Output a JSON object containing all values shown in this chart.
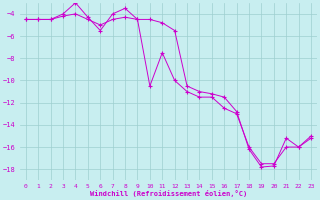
{
  "x_values": [
    0,
    1,
    2,
    3,
    4,
    5,
    6,
    7,
    8,
    9,
    10,
    11,
    12,
    13,
    14,
    15,
    16,
    17,
    18,
    19,
    20,
    21,
    22,
    23
  ],
  "line1": [
    -4.5,
    -4.5,
    -4.5,
    -4.2,
    -4.0,
    -4.5,
    -5.0,
    -4.5,
    -4.3,
    -4.5,
    -4.5,
    -4.8,
    -5.5,
    -10.5,
    -11.0,
    -11.2,
    -11.5,
    -12.8,
    -16.2,
    -17.8,
    -17.7,
    -15.2,
    -16.0,
    -15.2
  ],
  "line2": [
    -4.5,
    -4.5,
    -4.5,
    -4.0,
    -3.0,
    -4.3,
    -5.5,
    -4.0,
    -3.5,
    -4.5,
    -10.5,
    -7.5,
    -10.0,
    -11.0,
    -11.5,
    -11.5,
    -12.5,
    -13.0,
    -16.0,
    -17.5,
    -17.5,
    -16.0,
    -16.0,
    -15.0
  ],
  "bg_color": "#c8eef0",
  "grid_color": "#9ecfcf",
  "line_color": "#cc00cc",
  "xlabel": "Windchill (Refroidissement éolien,°C)",
  "ylim": [
    -19,
    -3
  ],
  "xlim": [
    -0.5,
    23.5
  ],
  "yticks": [
    -4,
    -6,
    -8,
    -10,
    -12,
    -14,
    -16,
    -18
  ],
  "xticks": [
    0,
    1,
    2,
    3,
    4,
    5,
    6,
    7,
    8,
    9,
    10,
    11,
    12,
    13,
    14,
    15,
    16,
    17,
    18,
    19,
    20,
    21,
    22,
    23
  ]
}
